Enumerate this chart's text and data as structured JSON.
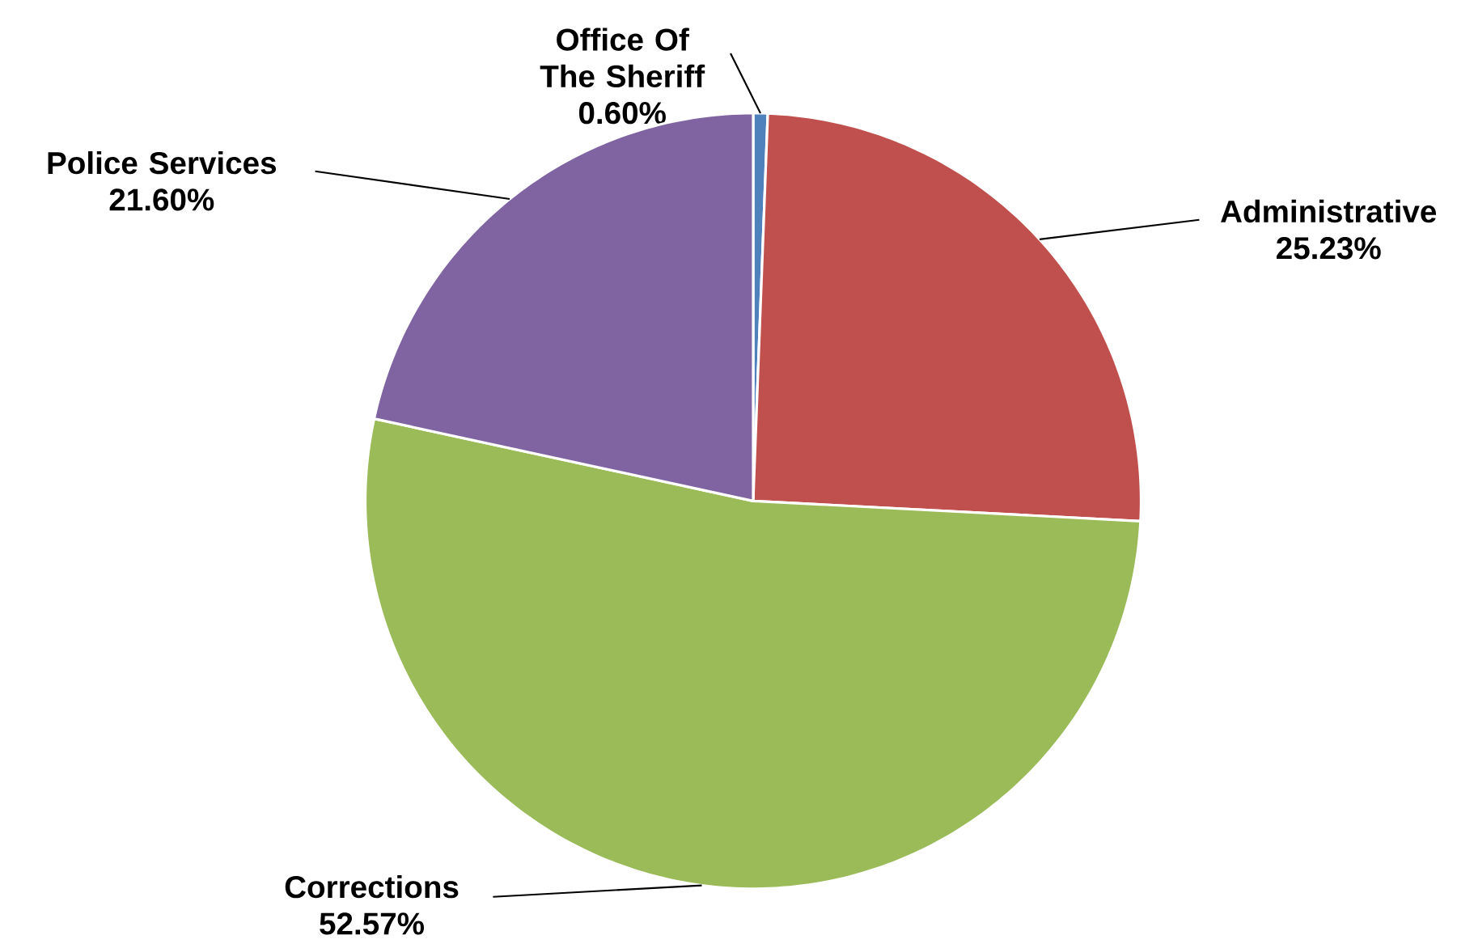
{
  "chart_data": {
    "type": "pie",
    "categories": [
      "Office Of The Sheriff",
      "Administrative",
      "Corrections",
      "Police Services"
    ],
    "values": [
      0.6,
      25.23,
      52.57,
      21.6
    ],
    "value_labels": [
      "0.60%",
      "25.23%",
      "52.57%",
      "21.60%"
    ],
    "colors": [
      "#4f81bd",
      "#c0504d",
      "#9bbb59",
      "#8064a2"
    ]
  }
}
